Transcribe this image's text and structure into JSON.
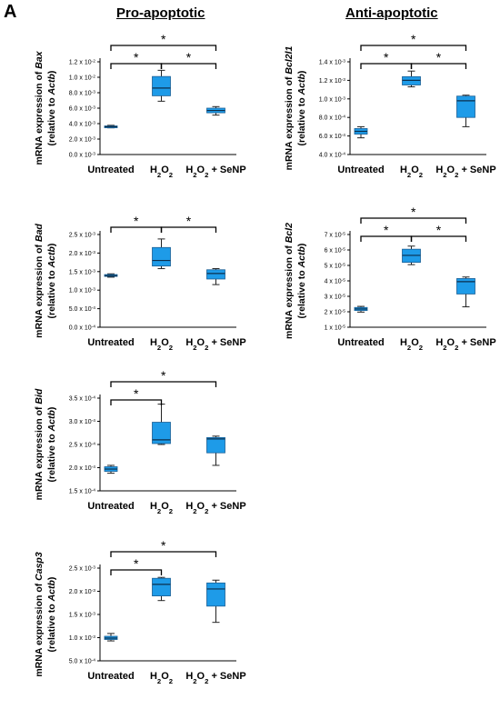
{
  "figure": {
    "panel_letter": "A",
    "column_headers": [
      "Pro-apoptotic",
      "Anti-apoptotic"
    ]
  },
  "colors": {
    "box_fill": "#1e9be8",
    "box_stroke": "#1a5f95"
  },
  "chart_data": [
    {
      "type": "box",
      "gene": "Bax",
      "ylabel_prefix": "mRNA expression of ",
      "ylabel_gene": "Bax",
      "ylabel2_prefix": "(relative to ",
      "ylabel2_gene": "Actb",
      "ylabel2_suffix": ")",
      "categories": [
        "Untreated",
        "H2O2",
        "H2O2 + SeNP"
      ],
      "ylim": [
        0.0,
        0.012
      ],
      "ticks": [
        0.0,
        0.002,
        0.004,
        0.006,
        0.008,
        0.01,
        0.012
      ],
      "tick_labels": [
        "0.0 x 10-3",
        "2.0 x 10-3",
        "4.0 x 10-3",
        "6.0 x 10-3",
        "8.0 x 10-3",
        "1.0 x 10-2",
        "1.2 x 10-2"
      ],
      "boxes": [
        {
          "min": 0.00345,
          "q1": 0.00355,
          "median": 0.0036,
          "q3": 0.0037,
          "max": 0.00378
        },
        {
          "min": 0.0069,
          "q1": 0.0076,
          "median": 0.0086,
          "q3": 0.0101,
          "max": 0.0109
        },
        {
          "min": 0.0051,
          "q1": 0.0054,
          "median": 0.0057,
          "q3": 0.006,
          "max": 0.0062
        }
      ],
      "significance": [
        {
          "from": 0,
          "to": 2,
          "label": "*"
        },
        {
          "from": 0,
          "to": 1,
          "label": "*"
        },
        {
          "from": 1,
          "to": 2,
          "label": "*"
        }
      ]
    },
    {
      "type": "box",
      "gene": "Bcl2l1",
      "ylabel_prefix": "mRNA expression of ",
      "ylabel_gene": "Bcl2l1",
      "ylabel2_prefix": "(relative to ",
      "ylabel2_gene": "Actb",
      "ylabel2_suffix": ")",
      "categories": [
        "Untreated",
        "H2O2",
        "H2O2 + SeNP"
      ],
      "ylim": [
        0.0004,
        0.0014
      ],
      "ticks": [
        0.0004,
        0.0006,
        0.0008,
        0.001,
        0.0012,
        0.0014
      ],
      "tick_labels": [
        "4.0 x 10-4",
        "6.0 x 10-4",
        "8.0 x 10-4",
        "1.0 x 10-3",
        "1.2 x 10-3",
        "1.4 x 10-3"
      ],
      "boxes": [
        {
          "min": 0.00058,
          "q1": 0.00062,
          "median": 0.00065,
          "q3": 0.00068,
          "max": 0.0007
        },
        {
          "min": 0.00113,
          "q1": 0.00115,
          "median": 0.0012,
          "q3": 0.00124,
          "max": 0.0013
        },
        {
          "min": 0.0007,
          "q1": 0.0008,
          "median": 0.00098,
          "q3": 0.00103,
          "max": 0.00104
        }
      ],
      "significance": [
        {
          "from": 0,
          "to": 2,
          "label": "*"
        },
        {
          "from": 0,
          "to": 1,
          "label": "*"
        },
        {
          "from": 1,
          "to": 2,
          "label": "*"
        }
      ]
    },
    {
      "type": "box",
      "gene": "Bad",
      "ylabel_prefix": "mRNA expression of ",
      "ylabel_gene": "Bad",
      "ylabel2_prefix": "(relative to ",
      "ylabel2_gene": "Actb",
      "ylabel2_suffix": ")",
      "categories": [
        "Untreated",
        "H2O2",
        "H2O2 + SeNP"
      ],
      "ylim": [
        0.0,
        0.0025
      ],
      "ticks": [
        0.0,
        0.0005,
        0.001,
        0.0015,
        0.002,
        0.0025
      ],
      "tick_labels": [
        "0.0 x 10-4",
        "5.0 x 10-4",
        "1.0 x 10-3",
        "1.5 x 10-3",
        "2.0 x 10-3",
        "2.5 x 10-3"
      ],
      "boxes": [
        {
          "min": 0.00135,
          "q1": 0.00137,
          "median": 0.00139,
          "q3": 0.00142,
          "max": 0.00144
        },
        {
          "min": 0.00158,
          "q1": 0.00165,
          "median": 0.0018,
          "q3": 0.00215,
          "max": 0.00238
        },
        {
          "min": 0.00115,
          "q1": 0.0013,
          "median": 0.00145,
          "q3": 0.00155,
          "max": 0.00158
        }
      ],
      "significance": [
        {
          "from": 0,
          "to": 1,
          "label": "*"
        },
        {
          "from": 1,
          "to": 2,
          "label": "*"
        }
      ]
    },
    {
      "type": "box",
      "gene": "Bcl2",
      "ylabel_prefix": "mRNA expression of ",
      "ylabel_gene": "Bcl2",
      "ylabel2_prefix": "(relative to ",
      "ylabel2_gene": "Actb",
      "ylabel2_suffix": ")",
      "categories": [
        "Untreated",
        "H2O2",
        "H2O2 + SeNP"
      ],
      "ylim": [
        1e-05,
        7e-05
      ],
      "ticks": [
        1e-05,
        2e-05,
        3e-05,
        4e-05,
        5e-05,
        6e-05,
        7e-05
      ],
      "tick_labels": [
        "1 x 10-5",
        "2 x 10-5",
        "3 x 10-5",
        "4 x 10-5",
        "5 x 10-5",
        "6 x 10-5",
        "7 x 10-5"
      ],
      "boxes": [
        {
          "min": 1.98e-05,
          "q1": 2.08e-05,
          "median": 2.18e-05,
          "q3": 2.28e-05,
          "max": 2.35e-05
        },
        {
          "min": 5.05e-05,
          "q1": 5.2e-05,
          "median": 5.65e-05,
          "q3": 6.05e-05,
          "max": 6.25e-05
        },
        {
          "min": 2.32e-05,
          "q1": 3.15e-05,
          "median": 3.95e-05,
          "q3": 4.15e-05,
          "max": 4.25e-05
        }
      ],
      "significance": [
        {
          "from": 0,
          "to": 2,
          "label": "*"
        },
        {
          "from": 0,
          "to": 1,
          "label": "*"
        },
        {
          "from": 1,
          "to": 2,
          "label": "*"
        }
      ]
    },
    {
      "type": "box",
      "gene": "Bid",
      "ylabel_prefix": "mRNA expression of ",
      "ylabel_gene": "Bid",
      "ylabel2_prefix": "(relative to ",
      "ylabel2_gene": "Actb",
      "ylabel2_suffix": ")",
      "categories": [
        "Untreated",
        "H2O2",
        "H2O2 + SeNP"
      ],
      "ylim": [
        0.00015,
        0.00035
      ],
      "ticks": [
        0.00015,
        0.0002,
        0.00025,
        0.0003,
        0.00035
      ],
      "tick_labels": [
        "1.5 x 10-4",
        "2.0 x 10-4",
        "2.5 x 10-4",
        "3.0 x 10-4",
        "3.5 x 10-4"
      ],
      "boxes": [
        {
          "min": 0.000188,
          "q1": 0.000192,
          "median": 0.000197,
          "q3": 0.000202,
          "max": 0.000205
        },
        {
          "min": 0.00025,
          "q1": 0.000252,
          "median": 0.00026,
          "q3": 0.000298,
          "max": 0.000337
        },
        {
          "min": 0.000205,
          "q1": 0.000232,
          "median": 0.000262,
          "q3": 0.000265,
          "max": 0.000268
        }
      ],
      "significance": [
        {
          "from": 0,
          "to": 2,
          "label": "*"
        },
        {
          "from": 0,
          "to": 1,
          "label": "*"
        }
      ]
    },
    {
      "type": "box",
      "gene": "Casp3",
      "ylabel_prefix": "mRNA expression of ",
      "ylabel_gene": "Casp3",
      "ylabel2_prefix": "(relative to ",
      "ylabel2_gene": "Actb",
      "ylabel2_suffix": ")",
      "categories": [
        "Untreated",
        "H2O2",
        "H2O2 + SeNP"
      ],
      "ylim": [
        0.0005,
        0.0025
      ],
      "ticks": [
        0.0005,
        0.001,
        0.0015,
        0.002,
        0.0025
      ],
      "tick_labels": [
        "5.0 x 10-4",
        "1.0 x 10-3",
        "1.5 x 10-3",
        "2.0 x 10-3",
        "2.5 x 10-3"
      ],
      "boxes": [
        {
          "min": 0.00093,
          "q1": 0.00096,
          "median": 0.00099,
          "q3": 0.00103,
          "max": 0.00109
        },
        {
          "min": 0.0018,
          "q1": 0.0019,
          "median": 0.00215,
          "q3": 0.00228,
          "max": 0.0023
        },
        {
          "min": 0.00133,
          "q1": 0.00168,
          "median": 0.00205,
          "q3": 0.00218,
          "max": 0.00224
        }
      ],
      "significance": [
        {
          "from": 0,
          "to": 2,
          "label": "*"
        },
        {
          "from": 0,
          "to": 1,
          "label": "*"
        }
      ]
    }
  ]
}
